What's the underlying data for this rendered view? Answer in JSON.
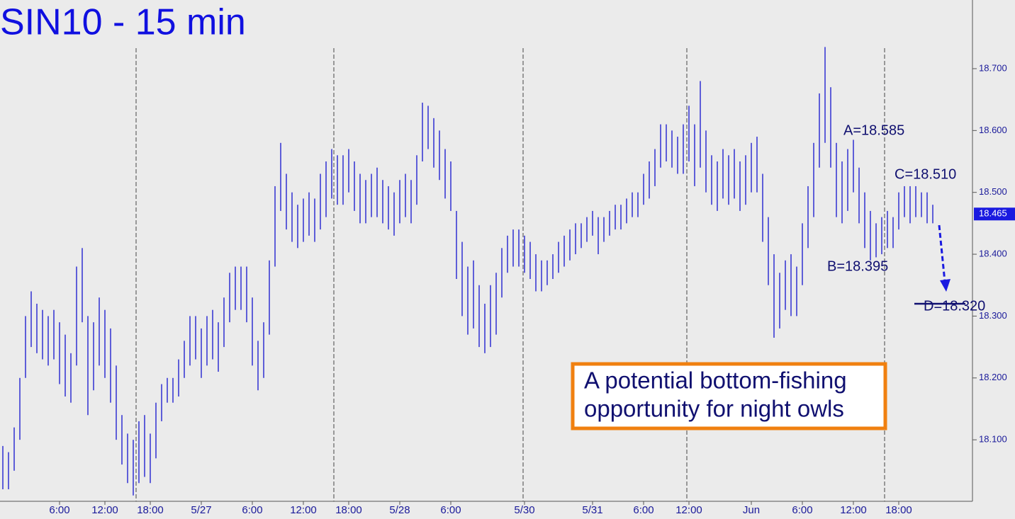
{
  "chart_data": {
    "type": "ohlc",
    "title": "SIN10 - 15 min",
    "color": "#0000cc",
    "categories": [
      null,
      null,
      null,
      null,
      null,
      null,
      null,
      null,
      null,
      null,
      "6:00",
      null,
      null,
      null,
      null,
      null,
      null,
      null,
      "12:00",
      null,
      null,
      null,
      null,
      null,
      null,
      null,
      "18:00",
      null,
      null,
      null,
      null,
      null,
      null,
      null,
      null,
      "5/27",
      null,
      null,
      null,
      null,
      null,
      null,
      null,
      null,
      "6:00",
      null,
      null,
      null,
      null,
      null,
      null,
      null,
      null,
      "12:00",
      null,
      null,
      null,
      null,
      null,
      null,
      null,
      "18:00",
      null,
      null,
      null,
      null,
      null,
      null,
      null,
      null,
      "5/28",
      null,
      null,
      null,
      null,
      null,
      null,
      null,
      null,
      "6:00",
      null,
      null,
      null,
      null,
      null,
      null,
      null,
      null,
      null,
      null,
      null,
      null,
      "5/30",
      null,
      null,
      null,
      null,
      null,
      null,
      null,
      null,
      null,
      null,
      null,
      "5/31",
      null,
      null,
      null,
      null,
      null,
      null,
      null,
      null,
      "6:00",
      null,
      null,
      null,
      null,
      null,
      null,
      null,
      "12:00",
      null,
      null,
      null,
      null,
      null,
      null,
      null,
      null,
      null,
      null,
      "Jun",
      null,
      null,
      null,
      null,
      null,
      null,
      null,
      null,
      "6:00",
      null,
      null,
      null,
      null,
      null,
      null,
      null,
      null,
      "12:00",
      null,
      null,
      null,
      null,
      null,
      null,
      null,
      "18:00",
      null,
      null,
      null,
      null,
      null,
      null
    ],
    "high": [
      18.09,
      18.08,
      18.12,
      18.2,
      18.3,
      18.34,
      18.32,
      18.31,
      18.3,
      18.31,
      18.29,
      18.27,
      18.24,
      18.38,
      18.41,
      18.3,
      18.29,
      18.33,
      18.31,
      18.28,
      18.22,
      18.14,
      18.11,
      18.1,
      18.13,
      18.14,
      18.11,
      18.16,
      18.19,
      18.2,
      18.2,
      18.23,
      18.26,
      18.3,
      18.3,
      18.28,
      18.3,
      18.31,
      18.29,
      18.33,
      18.37,
      18.38,
      18.38,
      18.38,
      18.33,
      18.26,
      18.29,
      18.39,
      18.51,
      18.58,
      18.53,
      18.5,
      18.48,
      18.49,
      18.5,
      18.49,
      18.53,
      18.55,
      18.57,
      18.56,
      18.56,
      18.57,
      18.55,
      18.53,
      18.52,
      18.53,
      18.54,
      18.52,
      18.51,
      18.5,
      18.52,
      18.53,
      18.52,
      18.56,
      18.645,
      18.64,
      18.62,
      18.6,
      18.57,
      18.55,
      18.47,
      18.42,
      18.38,
      18.39,
      18.35,
      18.32,
      18.35,
      18.37,
      18.41,
      18.43,
      18.44,
      18.44,
      18.43,
      18.42,
      18.4,
      18.39,
      18.39,
      18.4,
      18.42,
      18.43,
      18.44,
      18.45,
      18.45,
      18.46,
      18.47,
      18.46,
      18.46,
      18.47,
      18.48,
      18.48,
      18.49,
      18.5,
      18.5,
      18.53,
      18.55,
      18.57,
      18.61,
      18.61,
      18.6,
      18.59,
      18.61,
      18.64,
      18.61,
      18.68,
      18.6,
      18.56,
      18.55,
      18.57,
      18.56,
      18.57,
      18.55,
      18.56,
      18.58,
      18.59,
      18.53,
      18.46,
      18.4,
      18.37,
      18.39,
      18.4,
      18.38,
      18.45,
      18.51,
      18.58,
      18.66,
      18.735,
      18.67,
      18.58,
      18.55,
      18.57,
      18.585,
      18.54,
      18.5,
      18.47,
      18.45,
      18.46,
      18.47,
      18.46,
      18.5,
      18.51,
      18.51,
      18.51,
      18.5,
      18.5,
      18.48
    ],
    "low": [
      18.02,
      18.02,
      18.05,
      18.1,
      18.2,
      18.25,
      18.24,
      18.23,
      18.22,
      18.23,
      18.19,
      18.17,
      18.16,
      18.22,
      18.29,
      18.14,
      18.18,
      18.22,
      18.2,
      18.16,
      18.1,
      18.06,
      18.03,
      18.01,
      18.03,
      18.04,
      18.03,
      18.07,
      18.13,
      18.16,
      18.16,
      18.17,
      18.2,
      18.22,
      18.23,
      18.2,
      18.22,
      18.23,
      18.21,
      18.25,
      18.29,
      18.31,
      18.31,
      18.29,
      18.22,
      18.18,
      18.2,
      18.27,
      18.38,
      18.47,
      18.44,
      18.42,
      18.41,
      18.42,
      18.43,
      18.42,
      18.44,
      18.46,
      18.49,
      18.48,
      18.48,
      18.5,
      18.47,
      18.45,
      18.45,
      18.46,
      18.46,
      18.45,
      18.44,
      18.43,
      18.45,
      18.46,
      18.45,
      18.48,
      18.55,
      18.57,
      18.54,
      18.52,
      18.49,
      18.47,
      18.36,
      18.3,
      18.27,
      18.28,
      18.25,
      18.24,
      18.25,
      18.27,
      18.33,
      18.37,
      18.38,
      18.38,
      18.37,
      18.36,
      18.34,
      18.34,
      18.35,
      18.36,
      18.37,
      18.38,
      18.39,
      18.4,
      18.41,
      18.42,
      18.43,
      18.4,
      18.42,
      18.43,
      18.44,
      18.44,
      18.45,
      18.46,
      18.46,
      18.48,
      18.49,
      18.51,
      18.54,
      18.55,
      18.54,
      18.53,
      18.53,
      18.55,
      18.51,
      18.54,
      18.5,
      18.48,
      18.47,
      18.49,
      18.48,
      18.49,
      18.47,
      18.48,
      18.5,
      18.5,
      18.42,
      18.35,
      18.265,
      18.28,
      18.31,
      18.3,
      18.3,
      18.35,
      18.41,
      18.46,
      18.54,
      18.58,
      18.54,
      18.46,
      18.45,
      18.47,
      18.5,
      18.45,
      18.41,
      18.39,
      18.395,
      18.4,
      18.41,
      18.41,
      18.44,
      18.46,
      18.45,
      18.46,
      18.46,
      18.45,
      18.45
    ],
    "ylim": [
      18.004,
      18.811
    ],
    "yticks": [
      {
        "value": 18.1,
        "label": "18.100"
      },
      {
        "value": 18.2,
        "label": "18.200"
      },
      {
        "value": 18.3,
        "label": "18.300"
      },
      {
        "value": 18.4,
        "label": "18.400"
      },
      {
        "value": 18.5,
        "label": "18.500"
      },
      {
        "value": 18.6,
        "label": "18.600"
      },
      {
        "value": 18.7,
        "label": "18.700"
      }
    ],
    "last_price": 18.465,
    "annotations": [
      "A=18.585",
      "C=18.510",
      "B=18.395",
      "D=18.320"
    ],
    "target": 18.32,
    "callout": [
      "A potential bottom-fishing",
      "opportunity for night owls"
    ]
  }
}
